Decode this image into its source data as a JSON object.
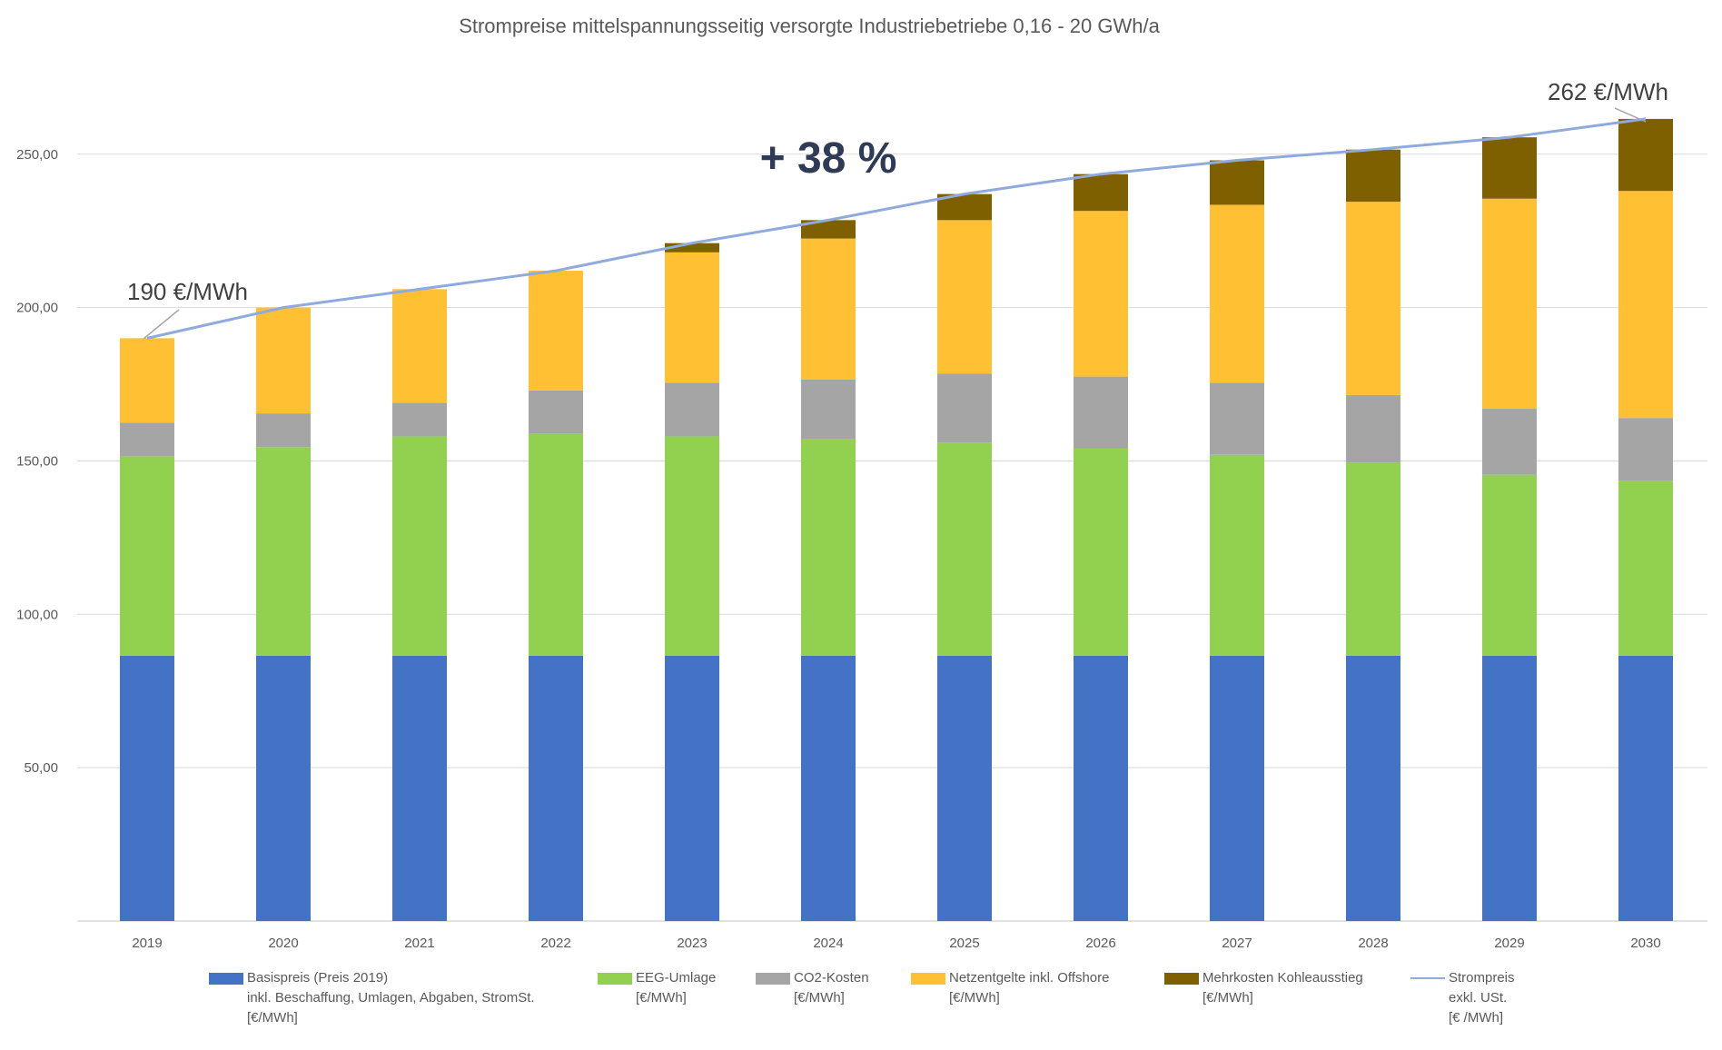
{
  "colors": {
    "basis": "#4472C4",
    "eeg": "#92D050",
    "co2": "#A5A5A5",
    "netz": "#FFC133",
    "kohle": "#7F6000",
    "line": "#8FAADC",
    "grid": "#D9D9D9",
    "text": "#595959",
    "highlight": "#2F3A56"
  },
  "chart_data": {
    "type": "bar",
    "stacked": true,
    "title": "Strompreise mittelspannungsseitig versorgte Industriebetriebe  0,16 - 20 GWh/a",
    "xlabel": "",
    "ylabel": "",
    "ylim": [
      0,
      270
    ],
    "yticks": [
      50,
      100,
      150,
      200,
      250
    ],
    "ytick_labels": [
      "50,00",
      "100,00",
      "150,00",
      "200,00",
      "250,00"
    ],
    "grid": true,
    "categories": [
      "2019",
      "2020",
      "2021",
      "2022",
      "2023",
      "2024",
      "2025",
      "2026",
      "2027",
      "2028",
      "2029",
      "2030"
    ],
    "series": [
      {
        "key": "basis",
        "name": "Basispreis (Preis 2019)",
        "values": [
          86.5,
          86.5,
          86.5,
          86.5,
          86.5,
          86.5,
          86.5,
          86.5,
          86.5,
          86.5,
          86.5,
          86.5
        ]
      },
      {
        "key": "eeg",
        "name": "EEG-Umlage",
        "values": [
          65,
          68,
          71.5,
          72.5,
          71.5,
          70.5,
          69.5,
          67.5,
          65.5,
          63,
          59,
          57
        ]
      },
      {
        "key": "co2",
        "name": "CO2-Kosten",
        "values": [
          11,
          11,
          11,
          14,
          17.5,
          19.5,
          22.5,
          23.5,
          23.5,
          22,
          21.5,
          20.5
        ]
      },
      {
        "key": "netz",
        "name": "Netzentgelte inkl. Offshore",
        "values": [
          27.5,
          34.5,
          37,
          39,
          42.5,
          46,
          50,
          54,
          58,
          63,
          68.5,
          74
        ]
      },
      {
        "key": "kohle",
        "name": "Mehrkosten Kohleausstieg",
        "values": [
          0,
          0,
          0,
          0,
          3,
          6,
          8.5,
          12,
          14.5,
          17,
          20,
          23.5
        ]
      }
    ],
    "line_series": {
      "name": "Strompreis exkl. USt.",
      "values": [
        190,
        200,
        206,
        212,
        221,
        228.5,
        237,
        243.5,
        248,
        251.5,
        255.5,
        261.5
      ]
    },
    "annotations": {
      "start_label": "190 €/MWh",
      "end_label": "262 €/MWh",
      "increase_label": "+ 38 %"
    }
  },
  "legend": [
    {
      "key": "basis",
      "type": "box",
      "lines": [
        "Basispreis (Preis 2019)",
        "inkl. Beschaffung, Umlagen, Abgaben, StromSt.",
        "[€/MWh]"
      ]
    },
    {
      "key": "eeg",
      "type": "box",
      "lines": [
        "EEG-Umlage",
        "[€/MWh]"
      ]
    },
    {
      "key": "co2",
      "type": "box",
      "lines": [
        "CO2-Kosten",
        "[€/MWh]"
      ]
    },
    {
      "key": "netz",
      "type": "box",
      "lines": [
        "Netzentgelte inkl. Offshore",
        "[€/MWh]"
      ]
    },
    {
      "key": "kohle",
      "type": "box",
      "lines": [
        "Mehrkosten Kohleausstieg",
        "[€/MWh]"
      ]
    },
    {
      "key": "line",
      "type": "line",
      "lines": [
        "Strompreis",
        "exkl. USt.",
        "[€ /MWh]"
      ]
    }
  ]
}
